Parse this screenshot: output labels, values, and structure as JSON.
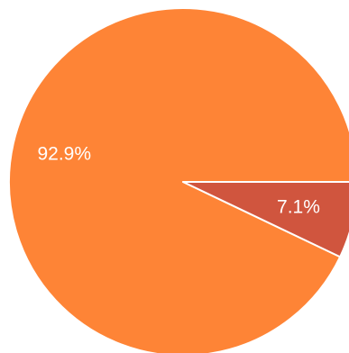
{
  "chart_data": {
    "type": "pie",
    "labels": [
      "",
      ""
    ],
    "values": [
      92.9,
      7.1
    ],
    "value_labels": [
      "92.9%",
      "7.1%"
    ],
    "colors": [
      "#FE8436",
      "#D0553E"
    ],
    "slice_border_color": "#FFFFFF",
    "legend": "none",
    "title": ""
  }
}
